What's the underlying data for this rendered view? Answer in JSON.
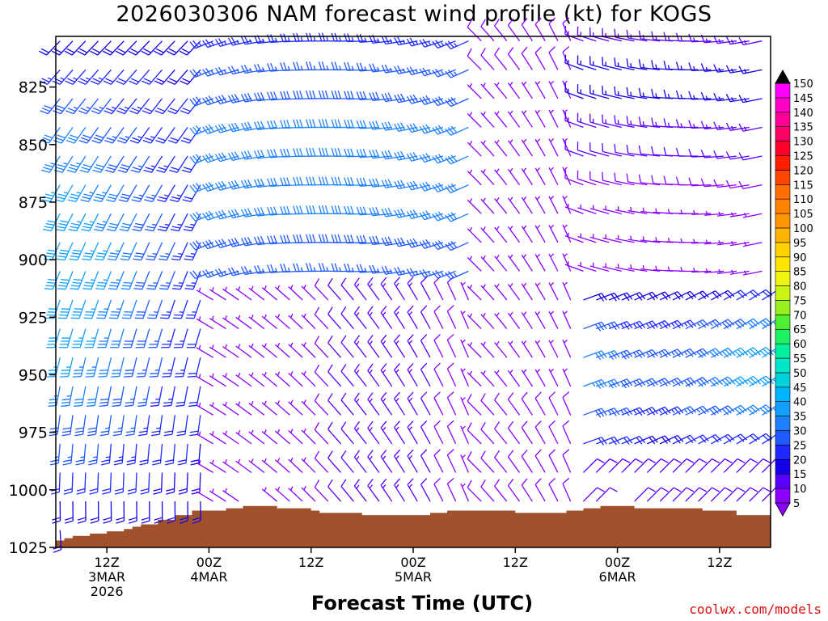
{
  "title": "2026030306 NAM forecast wind profile (kt) for KOGS",
  "xlabel": "Forecast Time (UTC)",
  "credit": "coolwx.com/models",
  "chart_data": {
    "type": "wind_barb_profile",
    "y_axis": {
      "label": "Pressure (hPa)",
      "range": [
        1025,
        803
      ],
      "ticks": [
        825,
        850,
        875,
        900,
        925,
        950,
        975,
        1000,
        1025
      ]
    },
    "x_axis": {
      "range_hours": [
        0,
        84
      ],
      "ticks": [
        {
          "hour": 6,
          "lines": [
            "12Z",
            "3MAR",
            "2026"
          ]
        },
        {
          "hour": 18,
          "lines": [
            "00Z",
            "4MAR"
          ]
        },
        {
          "hour": 30,
          "lines": [
            "12Z"
          ]
        },
        {
          "hour": 42,
          "lines": [
            "00Z",
            "5MAR"
          ]
        },
        {
          "hour": 54,
          "lines": [
            "12Z"
          ]
        },
        {
          "hour": 66,
          "lines": [
            "00Z",
            "6MAR"
          ]
        },
        {
          "hour": 78,
          "lines": [
            "12Z"
          ]
        }
      ]
    },
    "colorbar": {
      "levels": [
        5,
        10,
        15,
        20,
        25,
        30,
        35,
        40,
        45,
        50,
        55,
        60,
        65,
        70,
        75,
        80,
        85,
        90,
        95,
        100,
        105,
        110,
        115,
        120,
        125,
        130,
        135,
        140,
        145,
        150
      ],
      "colors": [
        "#8c00ff",
        "#5a00ff",
        "#1400e6",
        "#1e28ff",
        "#1e5aff",
        "#1e82ff",
        "#14a0ff",
        "#00b4ff",
        "#00d2dc",
        "#00e6c8",
        "#00f0a0",
        "#1ef064",
        "#50f032",
        "#96f01e",
        "#c8f514",
        "#f0f514",
        "#ffe600",
        "#ffd200",
        "#ffb400",
        "#ff9600",
        "#ff8200",
        "#ff6e00",
        "#ff4600",
        "#ff1e00",
        "#ff0028",
        "#ff0064",
        "#ff0096",
        "#ff00c8",
        "#ff00ff"
      ]
    },
    "terrain": {
      "color": "#a0522d",
      "hours": [
        0,
        1,
        2,
        4,
        6,
        8,
        9,
        10,
        12,
        14,
        16,
        18,
        20,
        22,
        24,
        25,
        26,
        28,
        30,
        31,
        34,
        36,
        40,
        42,
        44,
        46,
        48,
        50,
        52,
        54,
        56,
        58,
        60,
        62,
        64,
        66,
        68,
        72,
        76,
        80,
        84
      ],
      "surface_hpa": [
        1022,
        1021,
        1020,
        1019,
        1018,
        1017,
        1016,
        1015,
        1013,
        1011,
        1009,
        1009,
        1008,
        1007,
        1007,
        1007,
        1008,
        1008,
        1009,
        1010,
        1010,
        1011,
        1011,
        1011,
        1010,
        1009,
        1009,
        1009,
        1009,
        1010,
        1010,
        1010,
        1009,
        1008,
        1007,
        1007,
        1008,
        1008,
        1009,
        1011,
        1010
      ]
    },
    "wind_regimes": [
      {
        "region": "days 1 (hours 0-18), all levels",
        "direction": "south to southwest",
        "speed_kt": [
          15,
          40
        ]
      },
      {
        "region": "hours 18-50, 825-900 hPa",
        "direction": "southwest to west",
        "speed_kt": [
          20,
          35
        ]
      },
      {
        "region": "hours 50-60, upper levels",
        "direction": "northwest",
        "speed_kt": [
          5,
          15
        ]
      },
      {
        "region": "hours 60-84, 925-975 hPa",
        "direction": "northeast to east",
        "speed_kt": [
          15,
          40
        ]
      },
      {
        "region": "near surface, hours 36-84",
        "direction": "northeast",
        "speed_kt": [
          5,
          15
        ]
      }
    ]
  }
}
